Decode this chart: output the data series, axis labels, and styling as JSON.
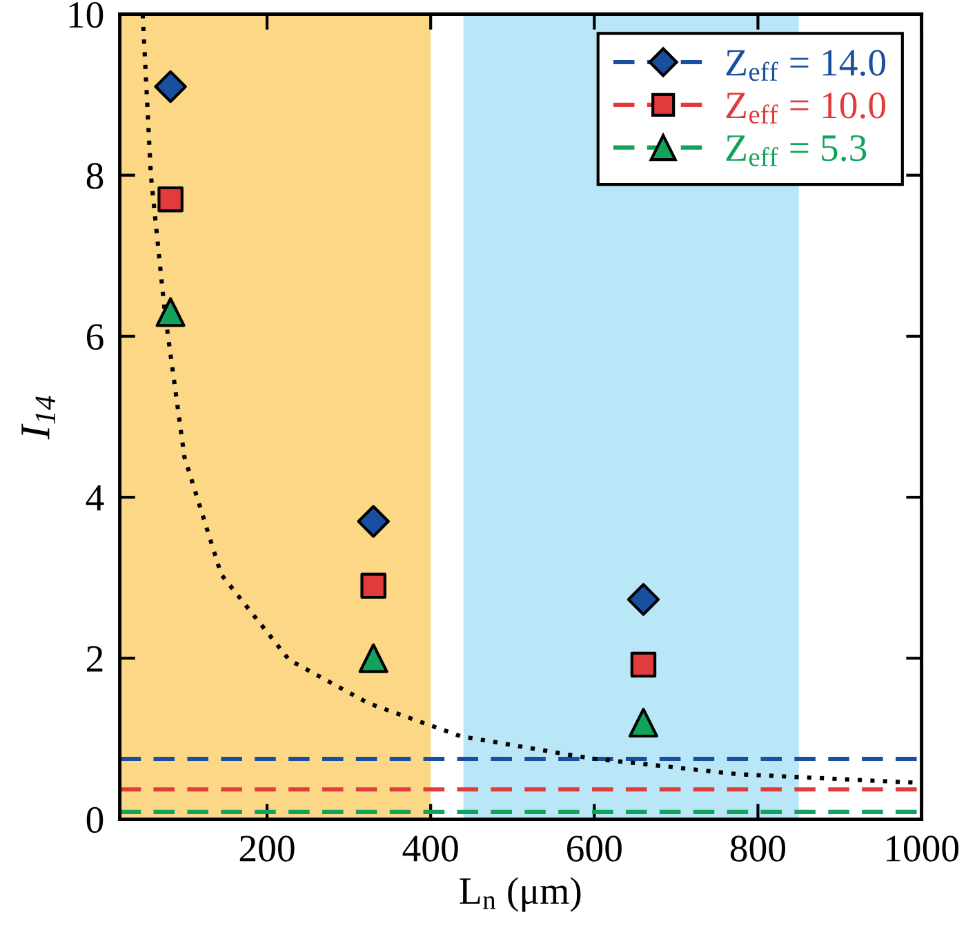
{
  "chart_data": {
    "type": "scatter",
    "xlabel": "L$_{n}$ (μm)",
    "ylabel": "I$_{14}$",
    "xlim": [
      20,
      1000
    ],
    "ylim": [
      0,
      10
    ],
    "xticks": [
      200,
      400,
      600,
      800,
      1000
    ],
    "yticks": [
      0,
      2,
      4,
      6,
      8,
      10
    ],
    "grid": false,
    "legend": "top right",
    "series": [
      {
        "name": "Z$_{eff}$ = 14.0",
        "color": "#1a4fa0",
        "marker": "diamond",
        "x": [
          82,
          330,
          660
        ],
        "values": [
          9.1,
          3.7,
          2.73
        ]
      },
      {
        "name": "Z$_{eff}$ = 10.0",
        "color": "#e03c3c",
        "marker": "square",
        "x": [
          82,
          330,
          660
        ],
        "values": [
          7.7,
          2.9,
          1.92
        ]
      },
      {
        "name": "Z$_{eff}$ = 5.3",
        "color": "#12a35a",
        "marker": "triangle",
        "x": [
          82,
          330,
          660
        ],
        "values": [
          6.3,
          2.0,
          1.2
        ]
      },
      {
        "type": "line",
        "color": "#000000",
        "marker": "none",
        "line_style": "dotted",
        "x": [
          48,
          58,
          75,
          99,
          144,
          227,
          324,
          437,
          593,
          775,
          1000
        ],
        "values": [
          10,
          8,
          6.3,
          4.5,
          3.04,
          1.98,
          1.44,
          1.03,
          0.76,
          0.56,
          0.45
        ]
      }
    ],
    "ref_lines": [
      {
        "axis": "y",
        "value": 0.75,
        "color": "#1a4fa0",
        "line_style": "dashed"
      },
      {
        "axis": "y",
        "value": 0.37,
        "color": "#e03c3c",
        "line_style": "dashed"
      },
      {
        "axis": "y",
        "value": 0.09,
        "color": "#12a35a",
        "line_style": "dashed"
      }
    ],
    "bands": [
      {
        "axis": "x",
        "from": 20,
        "to": 400,
        "color": "#fbcd68"
      },
      {
        "axis": "x",
        "from": 440,
        "to": 850,
        "color": "#a9e1f6"
      }
    ]
  }
}
